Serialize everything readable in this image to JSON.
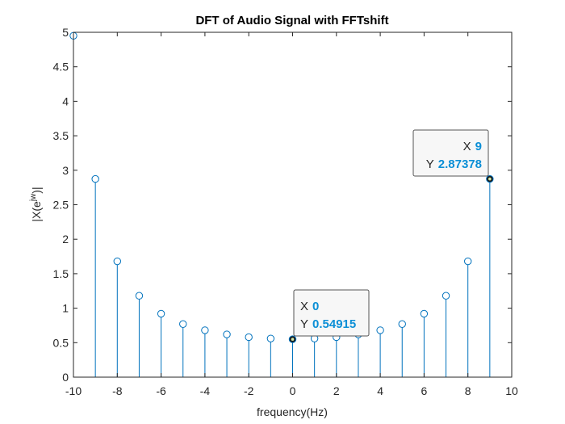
{
  "chart_data": {
    "type": "stem",
    "title": "DFT of Audio Signal with FFTshift",
    "xlabel": "frequency(Hz)",
    "ylabel_base": "|X(e",
    "ylabel_sup": "jw",
    "ylabel_tail": ")|",
    "xlim": [
      -10,
      10
    ],
    "ylim": [
      0,
      5
    ],
    "xticks": [
      -10,
      -8,
      -6,
      -4,
      -2,
      0,
      2,
      4,
      6,
      8,
      10
    ],
    "yticks": [
      0,
      0.5,
      1,
      1.5,
      2,
      2.5,
      3,
      3.5,
      4,
      4.5,
      5
    ],
    "xtick_labels": [
      "-10",
      "-8",
      "-6",
      "-4",
      "-2",
      "0",
      "2",
      "4",
      "6",
      "8",
      "10"
    ],
    "ytick_labels": [
      "0",
      "0.5",
      "1",
      "1.5",
      "2",
      "2.5",
      "3",
      "3.5",
      "4",
      "4.5",
      "5"
    ],
    "x": [
      -10,
      -9,
      -8,
      -7,
      -6,
      -5,
      -4,
      -3,
      -2,
      -1,
      0,
      1,
      2,
      3,
      4,
      5,
      6,
      7,
      8,
      9
    ],
    "y": [
      4.95,
      2.87378,
      1.68,
      1.18,
      0.92,
      0.77,
      0.68,
      0.62,
      0.58,
      0.56,
      0.54915,
      0.56,
      0.58,
      0.62,
      0.68,
      0.77,
      0.92,
      1.18,
      1.68,
      2.87378
    ],
    "stem_color": "#0072bd",
    "datatips": [
      {
        "x_label": "X",
        "x_value": "0",
        "y_label": "Y",
        "y_value": "0.54915",
        "x": 0,
        "y": 0.54915
      },
      {
        "x_label": "X",
        "x_value": "9",
        "y_label": "Y",
        "y_value": "2.87378",
        "x": 9,
        "y": 2.87378
      }
    ]
  }
}
